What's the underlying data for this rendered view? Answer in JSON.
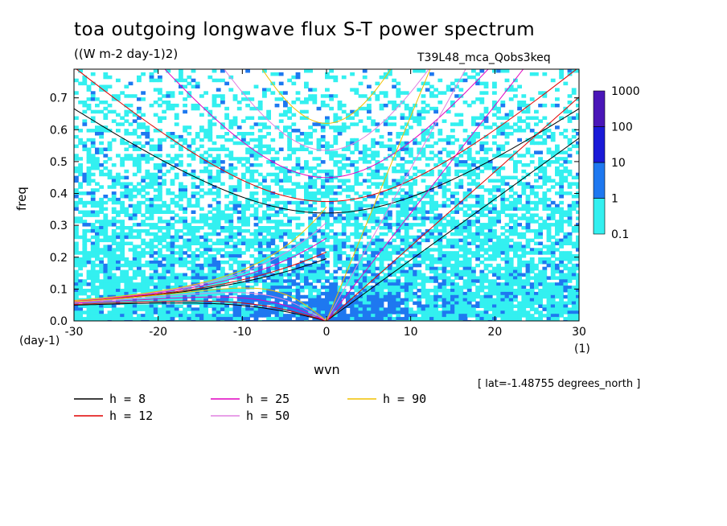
{
  "header": {
    "title": "toa outgoing longwave flux S-T power spectrum",
    "units": "((W m-2 day-1)2)",
    "run_name": "T39L48_mca_Qobs3keq",
    "lat_note": "[ lat=-1.48755 degrees_north ]"
  },
  "chart_data": {
    "type": "heatmap",
    "title": "toa outgoing longwave flux S-T power spectrum",
    "xlabel": "wvn",
    "xunit": "(1)",
    "ylabel": "freq",
    "yunit": "(day-1)",
    "xlim": [
      -30,
      30
    ],
    "ylim": [
      0,
      0.79
    ],
    "xticks": [
      -30,
      -20,
      -10,
      0,
      10,
      20,
      30
    ],
    "xtick_labels": [
      "-30",
      "-20",
      "-10",
      "0",
      "10",
      "20",
      "30"
    ],
    "yticks": [
      0.0,
      0.1,
      0.2,
      0.3,
      0.4,
      0.5,
      0.6,
      0.7
    ],
    "ytick_labels": [
      "0.0",
      "0.1",
      "0.2",
      "0.3",
      "0.4",
      "0.5",
      "0.6",
      "0.7"
    ],
    "colorbar": {
      "levels": [
        "0.1",
        "1",
        "10",
        "100",
        "1000"
      ],
      "colors": [
        "#33f0f0",
        "#1e78f0",
        "#1a1ad8",
        "#4a16b8"
      ]
    },
    "contour_fill_description_levels": {
      "low": "0.1-1 cyan",
      "mid": "1-10 blue",
      "high": "10-100 dark blue"
    },
    "dispersion_curves": [
      {
        "equivalent_depth": "8",
        "color": "#000000"
      },
      {
        "equivalent_depth": "12",
        "color": "#e00000"
      },
      {
        "equivalent_depth": "25",
        "color": "#e000c0"
      },
      {
        "equivalent_depth": "50",
        "color": "#e080e0"
      },
      {
        "equivalent_depth": "90",
        "color": "#f0c000"
      }
    ],
    "legend": [
      {
        "label": "h =  8",
        "color": "#000000"
      },
      {
        "label": "h = 12",
        "color": "#e00000"
      },
      {
        "label": "h = 25",
        "color": "#e000c0"
      },
      {
        "label": "h = 50",
        "color": "#e080e0"
      },
      {
        "label": "h = 90",
        "color": "#f0c000"
      }
    ]
  }
}
